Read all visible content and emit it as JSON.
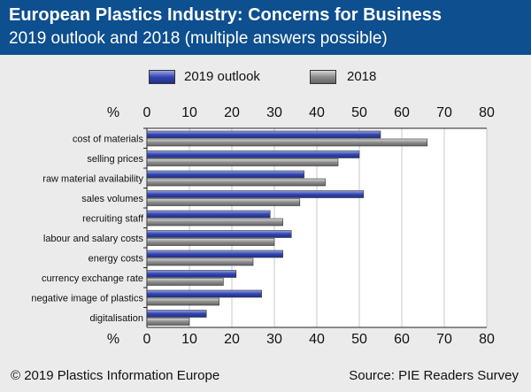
{
  "colors": {
    "header_bg": "#0d4f8f",
    "panel_bg": "#ebebeb",
    "series_2019": "#3b4bb0",
    "series_2018": "#8c8c8c"
  },
  "header": {
    "title": "European Plastics Industry: Concerns for Business",
    "subtitle": "2019 outlook and 2018 (multiple answers possible)"
  },
  "legend": {
    "item_2019": "2019 outlook",
    "item_2018": "2018"
  },
  "footer": {
    "copyright": "© 2019 Plastics Information Europe",
    "source": "Source: PIE Readers Survey"
  },
  "chart_data": {
    "type": "bar",
    "orientation": "horizontal",
    "title": "European Plastics Industry: Concerns for Business",
    "subtitle": "2019 outlook and 2018 (multiple answers possible)",
    "axis_unit_label": "%",
    "xlim": [
      0,
      80
    ],
    "ticks": [
      0,
      10,
      20,
      30,
      40,
      50,
      60,
      70,
      80
    ],
    "grid": true,
    "legend_position": "top",
    "categories": [
      "cost of materials",
      "selling prices",
      "raw material availability",
      "sales volumes",
      "recruiting staff",
      "labour and salary costs",
      "energy costs",
      "currency exchange rate",
      "negative image of plastics",
      "digitalisation"
    ],
    "series": [
      {
        "name": "2019 outlook",
        "values": [
          55,
          50,
          37,
          51,
          29,
          34,
          32,
          21,
          27,
          14
        ]
      },
      {
        "name": "2018",
        "values": [
          66,
          45,
          42,
          36,
          32,
          30,
          25,
          18,
          17,
          10
        ]
      }
    ]
  }
}
